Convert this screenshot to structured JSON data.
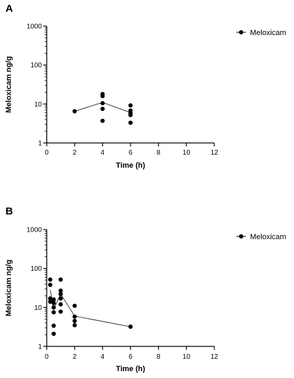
{
  "chart_data": [
    {
      "panel": "A",
      "type": "scatter",
      "xlabel": "Time (h)",
      "ylabel": "Meloxicam ng/g",
      "xlim": [
        0,
        12
      ],
      "x_ticks": [
        "0",
        "2",
        "4",
        "6",
        "8",
        "10",
        "12"
      ],
      "ylim": [
        1,
        1000
      ],
      "y_scale": "log",
      "y_ticks": [
        "1",
        "10",
        "100",
        "1000"
      ],
      "legend_position": "top-right",
      "series": [
        {
          "name": "Meloxicam",
          "color": "#000000",
          "points": [
            {
              "x": 2,
              "y": 6.5
            },
            {
              "x": 4,
              "y": 18
            },
            {
              "x": 4,
              "y": 16
            },
            {
              "x": 4,
              "y": 10.5
            },
            {
              "x": 4,
              "y": 7.5
            },
            {
              "x": 4,
              "y": 3.7
            },
            {
              "x": 6,
              "y": 9.2
            },
            {
              "x": 6,
              "y": 6.8
            },
            {
              "x": 6,
              "y": 5.8
            },
            {
              "x": 6,
              "y": 5.2
            },
            {
              "x": 6,
              "y": 3.3
            }
          ],
          "mean_line": [
            {
              "x": 2,
              "y": 6.5
            },
            {
              "x": 4,
              "y": 11
            },
            {
              "x": 6,
              "y": 6
            }
          ]
        }
      ]
    },
    {
      "panel": "B",
      "type": "scatter",
      "xlabel": "Time (h)",
      "ylabel": "Meloxicam ng/g",
      "xlim": [
        0,
        12
      ],
      "x_ticks": [
        "0",
        "2",
        "4",
        "6",
        "8",
        "10",
        "12"
      ],
      "ylim": [
        1,
        1000
      ],
      "y_scale": "log",
      "y_ticks": [
        "1",
        "10",
        "100",
        "1000"
      ],
      "legend_position": "top-right",
      "series": [
        {
          "name": "Meloxicam",
          "color": "#000000",
          "points": [
            {
              "x": 0.25,
              "y": 52
            },
            {
              "x": 0.25,
              "y": 38
            },
            {
              "x": 0.25,
              "y": 17
            },
            {
              "x": 0.25,
              "y": 14
            },
            {
              "x": 0.5,
              "y": 16
            },
            {
              "x": 0.5,
              "y": 13
            },
            {
              "x": 0.5,
              "y": 10
            },
            {
              "x": 0.5,
              "y": 7.5
            },
            {
              "x": 0.5,
              "y": 3.4
            },
            {
              "x": 0.5,
              "y": 2.1
            },
            {
              "x": 1,
              "y": 52
            },
            {
              "x": 1,
              "y": 27
            },
            {
              "x": 1,
              "y": 22
            },
            {
              "x": 1,
              "y": 17
            },
            {
              "x": 1,
              "y": 12
            },
            {
              "x": 1,
              "y": 7.8
            },
            {
              "x": 2,
              "y": 11
            },
            {
              "x": 2,
              "y": 5.8
            },
            {
              "x": 2,
              "y": 4.5
            },
            {
              "x": 2,
              "y": 3.5
            },
            {
              "x": 6,
              "y": 3.2
            }
          ],
          "mean_line": [
            {
              "x": 0.25,
              "y": 28
            },
            {
              "x": 0.5,
              "y": 9
            },
            {
              "x": 1,
              "y": 22
            },
            {
              "x": 2,
              "y": 6
            },
            {
              "x": 6,
              "y": 3.2
            }
          ]
        }
      ]
    }
  ]
}
